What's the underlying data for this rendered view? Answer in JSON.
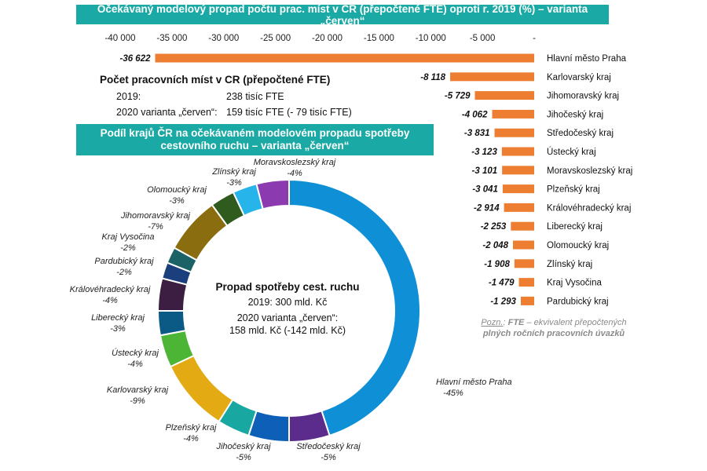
{
  "chart_data": [
    {
      "type": "bar",
      "orientation": "horizontal",
      "title": "Očekávaný modelový propad počtu prac. míst v CR (přepočtené FTE) oproti r. 2019 (%) – varianta „červen“",
      "axis_ticks": [
        "-40 000",
        "-35 000",
        "-30 000",
        "-25 000",
        "-20 000",
        "-15 000",
        "-10 000",
        "-5 000",
        "-"
      ],
      "xlim": [
        -40000,
        0
      ],
      "categories": [
        "Hlavní město Praha",
        "Karlovarský kraj",
        "Jihomoravský kraj",
        "Jihočeský kraj",
        "Středočeský kraj",
        "Ústecký kraj",
        "Moravskoslezský kraj",
        "Plzeňský kraj",
        "Královéhradecký kraj",
        "Liberecký kraj",
        "Olomoucký kraj",
        "Zlínský kraj",
        "Kraj Vysočina",
        "Pardubický kraj"
      ],
      "values": [
        -36622,
        -8118,
        -5729,
        -4062,
        -3831,
        -3123,
        -3101,
        -3041,
        -2914,
        -2253,
        -2048,
        -1908,
        -1479,
        -1293
      ],
      "value_labels": [
        "-36 622",
        "-8 118",
        "-5 729",
        "-4 062",
        "-3 831",
        "-3 123",
        "-3 101",
        "-3 041",
        "-2 914",
        "-2 253",
        "-2 048",
        "-1 908",
        "-1 479",
        "-1 293"
      ],
      "color": "#ed7d31"
    },
    {
      "type": "pie",
      "donut": true,
      "title": "Podíl krajů ČR na očekávaném modelovém propadu spotřeby cestovního ruchu – varianta „červen“",
      "slices": [
        {
          "name": "Hlavní město Praha",
          "value": 45,
          "label": "-45%",
          "color": "#0f8fd6"
        },
        {
          "name": "Středočeský kraj",
          "value": 5,
          "label": "-5%",
          "color": "#5b2c8c"
        },
        {
          "name": "Jihočeský kraj",
          "value": 5,
          "label": "-5%",
          "color": "#0d5fb8"
        },
        {
          "name": "Plzeňský kraj",
          "value": 4,
          "label": "-4%",
          "color": "#18a7a1"
        },
        {
          "name": "Karlovarský kraj",
          "value": 9,
          "label": "-9%",
          "color": "#e3aa13"
        },
        {
          "name": "Ústecký kraj",
          "value": 4,
          "label": "-4%",
          "color": "#4db535"
        },
        {
          "name": "Liberecký kraj",
          "value": 3,
          "label": "-3%",
          "color": "#0b5a86"
        },
        {
          "name": "Královéhradecký kraj",
          "value": 4,
          "label": "-4%",
          "color": "#3b1e42"
        },
        {
          "name": "Pardubický kraj",
          "value": 2,
          "label": "-2%",
          "color": "#1b3f7c"
        },
        {
          "name": "Kraj Vysočina",
          "value": 2,
          "label": "-2%",
          "color": "#1a6266"
        },
        {
          "name": "Jihomoravský kraj",
          "value": 7,
          "label": "-7%",
          "color": "#8a6d0f"
        },
        {
          "name": "Olomoucký kraj",
          "value": 3,
          "label": "-3%",
          "color": "#2f5c1e"
        },
        {
          "name": "Zlínský kraj",
          "value": 3,
          "label": "-3%",
          "color": "#27b4ea"
        },
        {
          "name": "Moravskoslezský kraj",
          "value": 4,
          "label": "-4%",
          "color": "#8b3ab0"
        }
      ],
      "center": {
        "title": "Propad spotřeby cest. ruchu",
        "line1": "2019: 300 mld. Kč",
        "line2": "2020 varianta „červen“:",
        "line3": "158 mld. Kč (-142 mld. Kč)"
      }
    }
  ],
  "info_box": {
    "title": "Počet pracovních míst v CR (přepočtené FTE)",
    "row1_label": "2019:",
    "row1_value": "238 tisíc FTE",
    "row2_label": "2020 varianta „červen“:",
    "row2_value": "159 tisíc FTE (- 79 tisíc FTE)"
  },
  "note": {
    "prefix": "Pozn.",
    "sep": ": ",
    "term": "FTE",
    "text": " – ekvivalent přepočtených",
    "line2": "plných ročních pracovních úvazků"
  }
}
